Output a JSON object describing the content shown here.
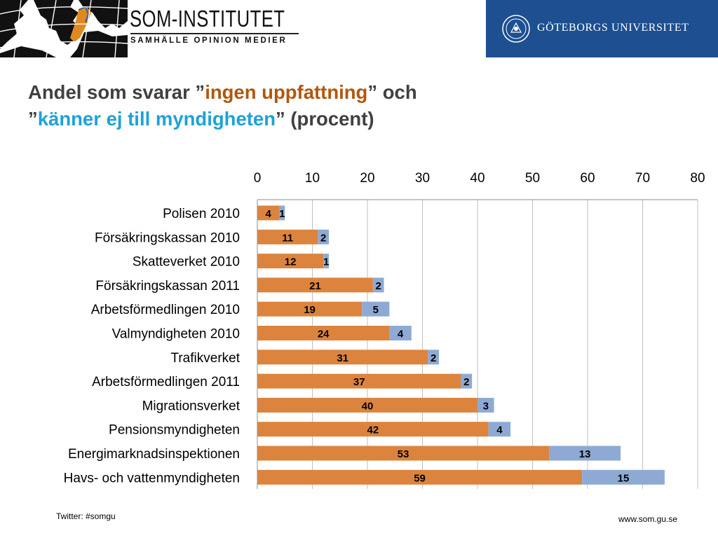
{
  "header": {
    "brand_title": "SOM-INSTITUTET",
    "brand_subtitle": "SAMHÄLLE  OPINION  MEDIER",
    "university_name": "GÖTEBORGS UNIVERSITET"
  },
  "slide_title": {
    "part1": "Andel som svarar ”",
    "highlight1": "ingen uppfattning",
    "part2": "” och",
    "part3": "”",
    "highlight2": "känner ej till myndigheten",
    "part4": "” (procent)"
  },
  "footer": {
    "twitter": "Twitter: #somgu",
    "url": "www.som.gu.se"
  },
  "colors": {
    "orange_series": "#dc843d",
    "blue_series": "#8eaad4",
    "title_orange": "#b0580f",
    "title_blue": "#1ea2d8",
    "gu_blue": "#1d4f91"
  },
  "chart_data": {
    "type": "bar",
    "orientation": "horizontal",
    "stacked": true,
    "categories": [
      "Polisen 2010",
      "Försäkringskassan 2010",
      "Skatteverket 2010",
      "Försäkringskassan 2011",
      "Arbetsförmedlingen 2010",
      "Valmyndigheten 2010",
      "Trafikverket",
      "Arbetsförmedlingen 2011",
      "Migrationsverket",
      "Pensionsmyndigheten",
      "Energimarknadsinspektionen",
      "Havs- och vattenmyndigheten"
    ],
    "series": [
      {
        "values": [
          4,
          11,
          12,
          21,
          19,
          24,
          31,
          37,
          40,
          42,
          53,
          59
        ],
        "color": "#dc843d"
      },
      {
        "values": [
          1,
          2,
          1,
          2,
          5,
          4,
          2,
          2,
          3,
          4,
          13,
          15
        ],
        "color": "#8eaad4"
      }
    ],
    "xlim": [
      0,
      80
    ],
    "xticks": [
      "0",
      "10",
      "20",
      "30",
      "40",
      "50",
      "60",
      "70",
      "80"
    ],
    "axis_position": "top",
    "grid": true
  }
}
